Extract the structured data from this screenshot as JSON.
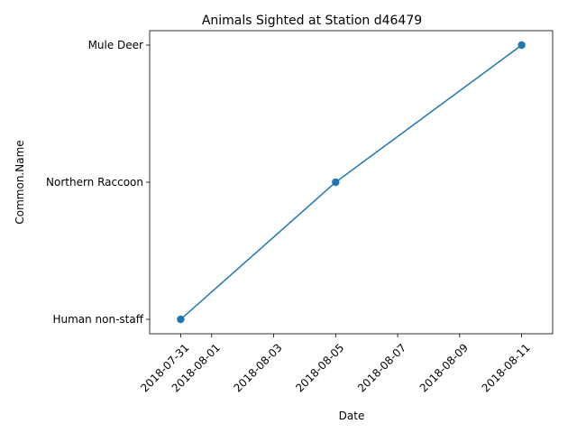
{
  "chart_data": {
    "type": "line",
    "title": "Animals Sighted at Station d46479",
    "xlabel": "Date",
    "ylabel": "Common.Name",
    "x_ticks": [
      "2018-07-31",
      "2018-08-01",
      "2018-08-03",
      "2018-08-05",
      "2018-08-07",
      "2018-08-09",
      "2018-08-11"
    ],
    "y_categories": [
      "Human non-staff",
      "Northern Raccoon",
      "Mule Deer"
    ],
    "x_range": [
      "2018-07-30",
      "2018-08-12"
    ],
    "series": [
      {
        "x": [
          "2018-07-31",
          "2018-08-05",
          "2018-08-11"
        ],
        "y": [
          "Human non-staff",
          "Northern Raccoon",
          "Mule Deer"
        ],
        "color": "#1f77b4",
        "marker": "circle"
      }
    ],
    "grid": false,
    "legend": "none"
  }
}
